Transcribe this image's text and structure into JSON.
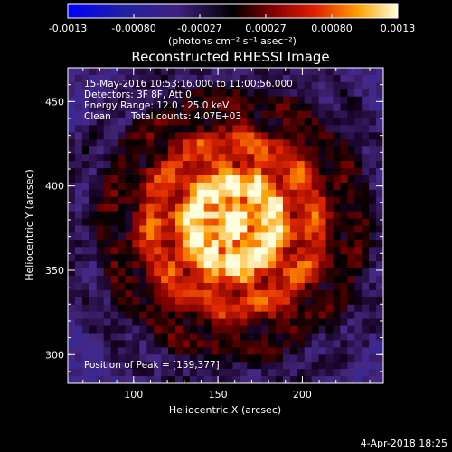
{
  "colorbar": {
    "tick_labels": [
      "-0.0013",
      "-0.00080",
      "-0.00027",
      "0.00027",
      "0.00080",
      "0.0013"
    ],
    "unit_label": "(photons cm⁻² s⁻¹ asec⁻²)",
    "range": [
      -0.0013,
      0.0013
    ]
  },
  "title": "Reconstructed RHESSI Image",
  "info": {
    "time": "15-May-2016 10:53:16.000 to 11:00:56.000",
    "detectors": "Detectors: 3F 8F, Att 0",
    "energy": "Energy Range: 12.0 - 25.0 keV",
    "algorithm": "Clean",
    "counts": "Total counts: 4.07E+03",
    "peak": "Position of Peak = [159,377]"
  },
  "axes": {
    "xlabel": "Heliocentric X (arcsec)",
    "ylabel": "Heliocentric Y (arcsec)",
    "x_ticks": [
      100,
      150,
      200
    ],
    "y_ticks": [
      300,
      350,
      400,
      450
    ],
    "xlim": [
      61,
      248
    ],
    "ylim": [
      283,
      470
    ]
  },
  "peak": [
    159,
    377
  ],
  "footer": {
    "date": "4-Apr-2018 18:25"
  }
}
